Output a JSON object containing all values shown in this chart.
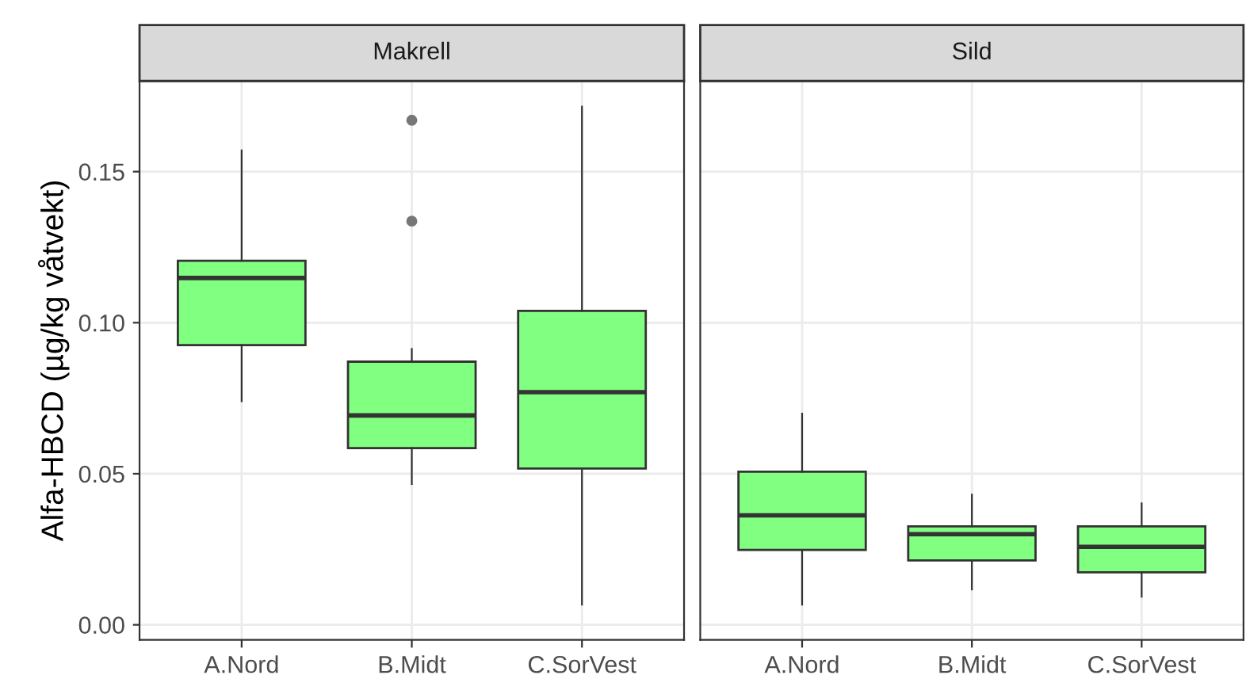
{
  "chart_data": [
    {
      "type": "box",
      "title": "Makrell",
      "ylabel": "Alfa-HBCD (µg/kg våtvekt)",
      "categories": [
        "A.Nord",
        "B.Midt",
        "C.SorVest"
      ],
      "series": [
        {
          "color": "#80ff80",
          "boxes": [
            {
              "low": 0.074,
              "q1": 0.0926,
              "median": 0.1148,
              "q3": 0.1205,
              "high": 0.157
            },
            {
              "low": 0.0466,
              "q1": 0.0585,
              "median": 0.0693,
              "q3": 0.0871,
              "high": 0.0913,
              "outliers": [
                0.1336,
                0.167
              ]
            },
            {
              "low": 0.0067,
              "q1": 0.0517,
              "median": 0.077,
              "q3": 0.1039,
              "high": 0.1715
            }
          ]
        }
      ],
      "ylim": [
        -0.005,
        0.18
      ],
      "yticks": [
        {
          "value": 0,
          "label": "0.00"
        },
        {
          "value": 0.05,
          "label": "0.05"
        },
        {
          "value": 0.1,
          "label": "0.10"
        },
        {
          "value": 0.15,
          "label": "0.15"
        }
      ],
      "grid": true
    },
    {
      "type": "box",
      "title": "Sild",
      "categories": [
        "A.Nord",
        "B.Midt",
        "C.SorVest"
      ],
      "series": [
        {
          "color": "#80ff80",
          "boxes": [
            {
              "low": 0.0067,
              "q1": 0.0248,
              "median": 0.0362,
              "q3": 0.0507,
              "high": 0.0699
            },
            {
              "low": 0.0117,
              "q1": 0.0213,
              "median": 0.03,
              "q3": 0.0326,
              "high": 0.0431
            },
            {
              "low": 0.0093,
              "q1": 0.0174,
              "median": 0.0258,
              "q3": 0.0326,
              "high": 0.0402
            }
          ]
        }
      ],
      "ylim": [
        -0.005,
        0.18
      ],
      "yticks": [
        {
          "value": 0,
          "label": null
        },
        {
          "value": 0.05,
          "label": null
        },
        {
          "value": 0.1,
          "label": null
        },
        {
          "value": 0.15,
          "label": null
        }
      ],
      "grid": true,
      "tick_labels": "x"
    }
  ]
}
